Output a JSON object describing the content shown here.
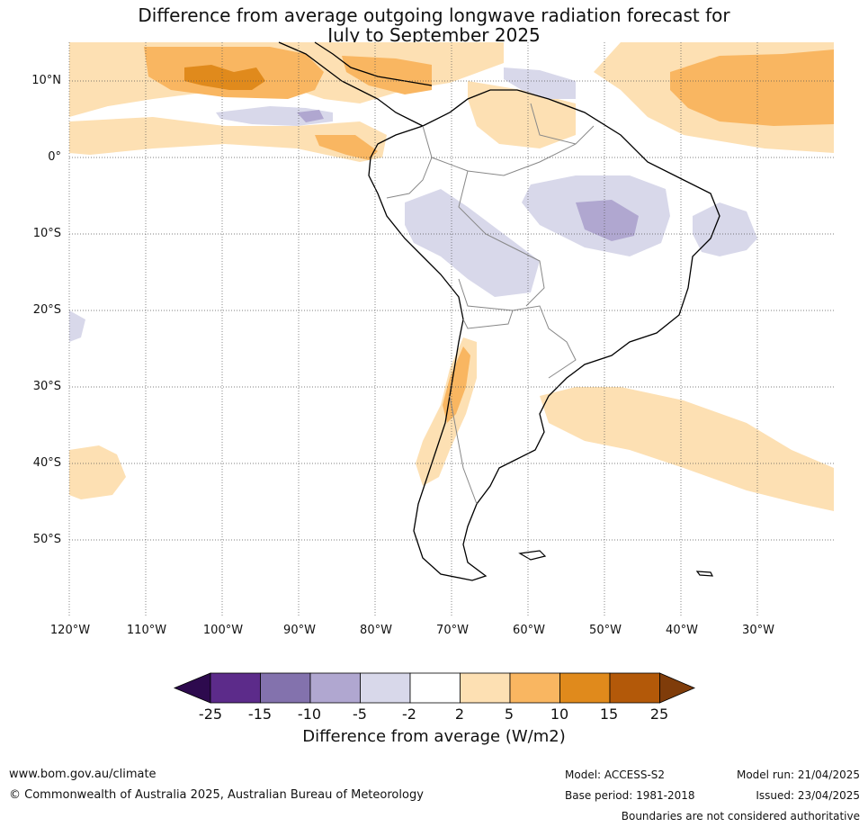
{
  "title": {
    "line1": "Difference from average outgoing longwave radiation forecast for",
    "line2": "July to September 2025"
  },
  "map": {
    "lat_labels": [
      "10°N",
      "0°",
      "10°S",
      "20°S",
      "30°S",
      "40°S",
      "50°S"
    ],
    "lon_labels": [
      "120°W",
      "110°W",
      "100°W",
      "90°W",
      "80°W",
      "70°W",
      "60°W",
      "50°W",
      "40°W",
      "30°W"
    ],
    "grid": true
  },
  "colorbar": {
    "ticks": [
      "-25",
      "-15",
      "-10",
      "-5",
      "-2",
      "2",
      "5",
      "10",
      "15",
      "25"
    ],
    "colors": [
      "#2d0a4e",
      "#5c2b8a",
      "#8372ad",
      "#b0a7d0",
      "#d8d8ea",
      "#ffffff",
      "#fde0b3",
      "#f9b661",
      "#e08a1c",
      "#b35909",
      "#7f3c0a"
    ],
    "title": "Difference from average (W/m2)"
  },
  "footer": {
    "url": "www.bom.gov.au/climate",
    "copyright": "© Commonwealth of Australia 2025, Australian Bureau of Meteorology",
    "model": "Model: ACCESS-S2",
    "base_period": "Base period: 1981-2018",
    "model_run": "Model run: 21/04/2025",
    "issued": "Issued: 23/04/2025",
    "boundaries": "Boundaries are not considered authoritative"
  }
}
